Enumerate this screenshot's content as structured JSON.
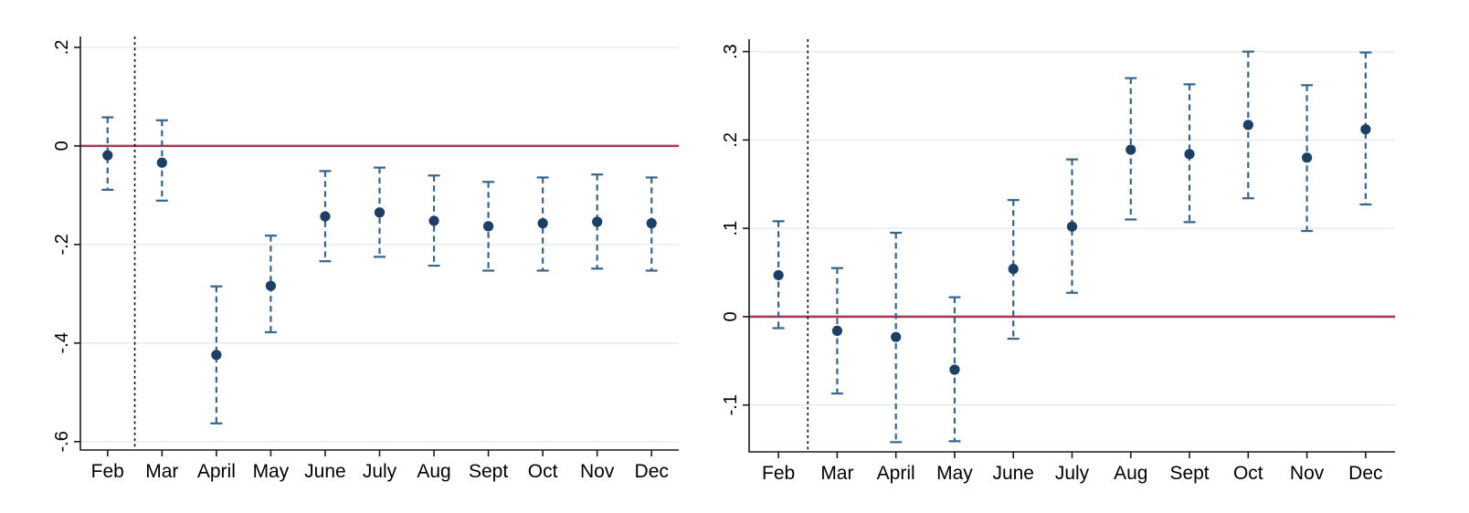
{
  "figure": {
    "description": "Two-panel event-study coefficient plot with 95% confidence intervals by month",
    "background": "#ffffff"
  },
  "colors": {
    "marker": "#1c3f66",
    "ci": "#35648f",
    "zero_line": "#a43a56",
    "grid": "#e2eaef",
    "axis": "#1a1a1a",
    "event_line": "#000000",
    "label": "#000000"
  },
  "chart_data": [
    {
      "type": "scatter",
      "panel": "left",
      "title": "",
      "xlabel": "",
      "ylabel": "",
      "categories": [
        "Feb",
        "Mar",
        "April",
        "May",
        "June",
        "July",
        "Aug",
        "Sept",
        "Oct",
        "Nov",
        "Dec"
      ],
      "series": [
        {
          "name": "coefficient",
          "values": [
            -0.019,
            -0.034,
            -0.424,
            -0.284,
            -0.143,
            -0.135,
            -0.152,
            -0.163,
            -0.157,
            -0.154,
            -0.157
          ]
        },
        {
          "name": "ci_lower",
          "values": [
            -0.089,
            -0.111,
            -0.563,
            -0.378,
            -0.234,
            -0.225,
            -0.243,
            -0.253,
            -0.253,
            -0.249,
            -0.253
          ]
        },
        {
          "name": "ci_upper",
          "values": [
            0.058,
            0.052,
            -0.285,
            -0.182,
            -0.051,
            -0.044,
            -0.06,
            -0.073,
            -0.064,
            -0.058,
            -0.064
          ]
        }
      ],
      "yticks": {
        "values": [
          0.2,
          0,
          -0.2,
          -0.4,
          -0.6
        ],
        "labels": [
          ".2",
          "0",
          "-.2",
          "-.4",
          "-.6"
        ]
      },
      "ylim": [
        -0.617,
        0.222
      ],
      "reference_line_y": 0,
      "event_line_between_categories": [
        "Feb",
        "Mar"
      ],
      "grid": true,
      "legend": "none"
    },
    {
      "type": "scatter",
      "panel": "right",
      "title": "",
      "xlabel": "",
      "ylabel": "",
      "categories": [
        "Feb",
        "Mar",
        "April",
        "May",
        "June",
        "July",
        "Aug",
        "Sept",
        "Oct",
        "Nov",
        "Dec"
      ],
      "series": [
        {
          "name": "coefficient",
          "values": [
            0.047,
            -0.016,
            -0.023,
            -0.06,
            0.054,
            0.102,
            0.189,
            0.184,
            0.217,
            0.18,
            0.212
          ]
        },
        {
          "name": "ci_lower",
          "values": [
            -0.013,
            -0.087,
            -0.142,
            -0.141,
            -0.025,
            0.027,
            0.11,
            0.107,
            0.134,
            0.097,
            0.127
          ]
        },
        {
          "name": "ci_upper",
          "values": [
            0.108,
            0.055,
            0.095,
            0.022,
            0.132,
            0.178,
            0.27,
            0.263,
            0.3,
            0.262,
            0.299
          ]
        }
      ],
      "yticks": {
        "values": [
          0.3,
          0.2,
          0.1,
          0,
          -0.1
        ],
        "labels": [
          ".3",
          ".2",
          ".1",
          "0",
          "-.1"
        ]
      },
      "ylim": [
        -0.153,
        0.314
      ],
      "reference_line_y": 0,
      "event_line_between_categories": [
        "Feb",
        "Mar"
      ],
      "grid": true,
      "legend": "none"
    }
  ]
}
